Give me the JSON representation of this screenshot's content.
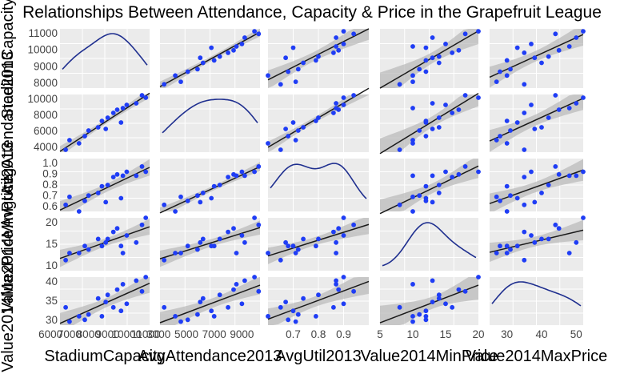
{
  "chart_data": {
    "type": "scatter",
    "title": "Relationships Between Attendance, Capacity & Price in the Grapefruit League",
    "variables": [
      "StadiumCapacity",
      "AvgAttendance2013",
      "AvgUtil2013",
      "Value2014MinPrice",
      "Value2014MaxPrice"
    ],
    "ranges": {
      "StadiumCapacity": [
        6500,
        11200
      ],
      "AvgAttendance2013": [
        3100,
        10300
      ],
      "AvgUtil2013": [
        0.6,
        1.0
      ],
      "Value2014MinPrice": [
        5,
        20
      ],
      "Value2014MaxPrice": [
        25,
        52
      ]
    },
    "ticks": {
      "StadiumCapacity": [
        6000,
        7000,
        8000,
        9000,
        10000,
        11000
      ],
      "AvgAttendance2013": [
        3000,
        5000,
        7000,
        9000
      ],
      "AvgUtil2013": [
        0.7,
        0.8,
        0.9
      ],
      "Value2014MinPrice": [
        5,
        10,
        15,
        20
      ],
      "Value2014MaxPrice": [
        30,
        40,
        50
      ]
    },
    "y_ticks": {
      "StadiumCapacity": [
        "8000",
        "9000",
        "10000",
        "11000"
      ],
      "AvgAttendance2013": [
        "4000",
        "6000",
        "8000",
        "10000"
      ],
      "AvgUtil2013": [
        "0.6",
        "0.7",
        "0.8",
        "0.9",
        "1.0"
      ],
      "Value2014MinPrice": [
        "10",
        "15",
        "20"
      ],
      "Value2014MaxPrice": [
        "30",
        "35",
        "40"
      ]
    },
    "x_ticks": {
      "StadiumCapacity": [
        "6000",
        "7000",
        "8000",
        "9000",
        "10000",
        "11000"
      ],
      "AvgAttendance2013": [
        "3000",
        "5000",
        "7000",
        "9000"
      ],
      "AvgUtil2013": [
        "0.7",
        "0.8",
        "0.9"
      ],
      "Value2014MinPrice": [
        "5",
        "10",
        "15",
        "20"
      ],
      "Value2014MaxPrice": [
        "30",
        "40",
        "50"
      ]
    },
    "points": [
      {
        "StadiumCapacity": 6800,
        "AvgAttendance2013": 3400,
        "AvgUtil2013": 0.65,
        "Value2014MinPrice": 8,
        "Value2014MaxPrice": 35
      },
      {
        "StadiumCapacity": 7000,
        "AvgAttendance2013": 4600,
        "AvgUtil2013": 0.71,
        "Value2014MinPrice": 10,
        "Value2014MaxPrice": 27
      },
      {
        "StadiumCapacity": 7500,
        "AvgAttendance2013": 4200,
        "AvgUtil2013": 0.6,
        "Value2014MinPrice": 10,
        "Value2014MaxPrice": 30
      },
      {
        "StadiumCapacity": 7800,
        "AvgAttendance2013": 5100,
        "AvgUtil2013": 0.68,
        "Value2014MinPrice": 12,
        "Value2014MaxPrice": 28
      },
      {
        "StadiumCapacity": 8000,
        "AvgAttendance2013": 5800,
        "AvgUtil2013": 0.72,
        "Value2014MinPrice": 11,
        "Value2014MaxPrice": 31
      },
      {
        "StadiumCapacity": 8500,
        "AvgAttendance2013": 6200,
        "AvgUtil2013": 0.74,
        "Value2014MinPrice": 14,
        "Value2014MaxPrice": 40
      },
      {
        "StadiumCapacity": 8700,
        "AvgAttendance2013": 7000,
        "AvgUtil2013": 0.79,
        "Value2014MinPrice": 12,
        "Value2014MaxPrice": 30
      },
      {
        "StadiumCapacity": 8900,
        "AvgAttendance2013": 6000,
        "AvgUtil2013": 0.67,
        "Value2014MinPrice": 13,
        "Value2014MaxPrice": 38
      },
      {
        "StadiumCapacity": 9000,
        "AvgAttendance2013": 7400,
        "AvgUtil2013": 0.8,
        "Value2014MinPrice": 14,
        "Value2014MaxPrice": 42
      },
      {
        "StadiumCapacity": 9300,
        "AvgAttendance2013": 8000,
        "AvgUtil2013": 0.86,
        "Value2014MinPrice": 16,
        "Value2014MaxPrice": 35
      },
      {
        "StadiumCapacity": 9500,
        "AvgAttendance2013": 8400,
        "AvgUtil2013": 0.88,
        "Value2014MinPrice": 17,
        "Value2014MaxPrice": 45
      },
      {
        "StadiumCapacity": 9700,
        "AvgAttendance2013": 6800,
        "AvgUtil2013": 0.7,
        "Value2014MinPrice": 12,
        "Value2014MaxPrice": 33
      },
      {
        "StadiumCapacity": 9800,
        "AvgAttendance2013": 8600,
        "AvgUtil2013": 0.87,
        "Value2014MinPrice": 10,
        "Value2014MaxPrice": 48
      },
      {
        "StadiumCapacity": 10000,
        "AvgAttendance2013": 9000,
        "AvgUtil2013": 0.9,
        "Value2014MinPrice": 15,
        "Value2014MaxPrice": 37
      },
      {
        "StadiumCapacity": 10500,
        "AvgAttendance2013": 9200,
        "AvgUtil2013": 0.87,
        "Value2014MinPrice": 13,
        "Value2014MaxPrice": 50
      },
      {
        "StadiumCapacity": 10800,
        "AvgAttendance2013": 10200,
        "AvgUtil2013": 0.94,
        "Value2014MinPrice": 18,
        "Value2014MaxPrice": 44
      },
      {
        "StadiumCapacity": 11000,
        "AvgAttendance2013": 9900,
        "AvgUtil2013": 0.9,
        "Value2014MinPrice": 20,
        "Value2014MaxPrice": 52
      }
    ],
    "grid": true,
    "legend": "none",
    "colors": {
      "point": "#1f3df5",
      "line": "#1a1a1a",
      "density": "#1f2f8f",
      "band": "#b8b8b8",
      "panel": "#ebebeb",
      "grid": "#ffffff"
    }
  }
}
